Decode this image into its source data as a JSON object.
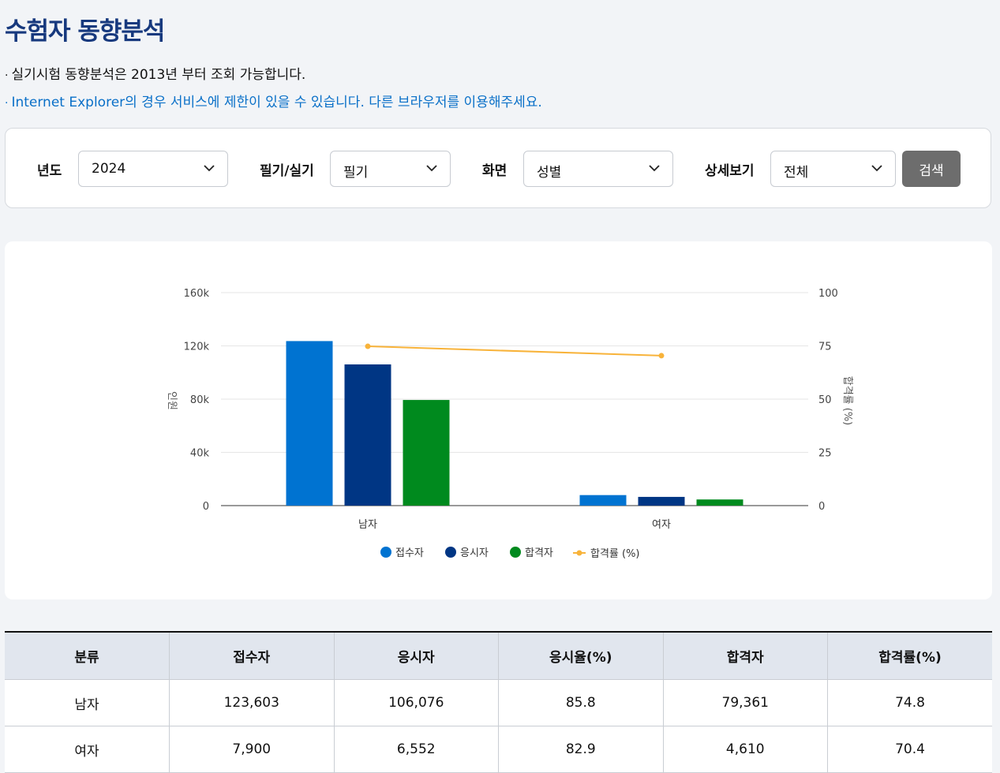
{
  "page": {
    "title": "수험자 동향분석",
    "notes": [
      "실기시험 동향분석은 2013년 부터 조회 가능합니다.",
      "Internet Explorer의 경우 서비스에 제한이 있을 수 있습니다. 다른 브라우저를 이용해주세요."
    ],
    "bullet": "·"
  },
  "filters": {
    "year": {
      "label": "년도",
      "value": "2024"
    },
    "exam_type": {
      "label": "필기/실기",
      "value": "필기"
    },
    "view": {
      "label": "화면",
      "value": "성별"
    },
    "detail": {
      "label": "상세보기",
      "value": "전체"
    },
    "search_label": "검색",
    "search_color": "#6d6d6d"
  },
  "chart_data": {
    "type": "bar",
    "categories": [
      "남자",
      "여자"
    ],
    "series": [
      {
        "name": "접수자",
        "kind": "bar",
        "axis": "left",
        "color": "#0073d1",
        "values": [
          123603,
          7900
        ]
      },
      {
        "name": "응시자",
        "kind": "bar",
        "axis": "left",
        "color": "#003684",
        "values": [
          106076,
          6552
        ]
      },
      {
        "name": "합격자",
        "kind": "bar",
        "axis": "left",
        "color": "#008a1e",
        "values": [
          79361,
          4610
        ]
      },
      {
        "name": "합격률 (%)",
        "kind": "line",
        "axis": "right",
        "color": "#f8b33a",
        "values": [
          74.8,
          70.4
        ]
      }
    ],
    "ylabel": "인원",
    "y2label": "합격률 (%)",
    "ylim": [
      0,
      160000
    ],
    "y2lim": [
      0,
      100
    ],
    "yticks": [
      "0",
      "40k",
      "80k",
      "120k",
      "160k"
    ],
    "y2ticks": [
      "0",
      "25",
      "50",
      "75",
      "100"
    ],
    "grid": true,
    "legend_position": "bottom"
  },
  "table": {
    "headers": [
      "분류",
      "접수자",
      "응시자",
      "응시율(%)",
      "합격자",
      "합격률(%)"
    ],
    "rows": [
      [
        "남자",
        "123,603",
        "106,076",
        "85.8",
        "79,361",
        "74.8"
      ],
      [
        "여자",
        "7,900",
        "6,552",
        "82.9",
        "4,610",
        "70.4"
      ]
    ]
  }
}
